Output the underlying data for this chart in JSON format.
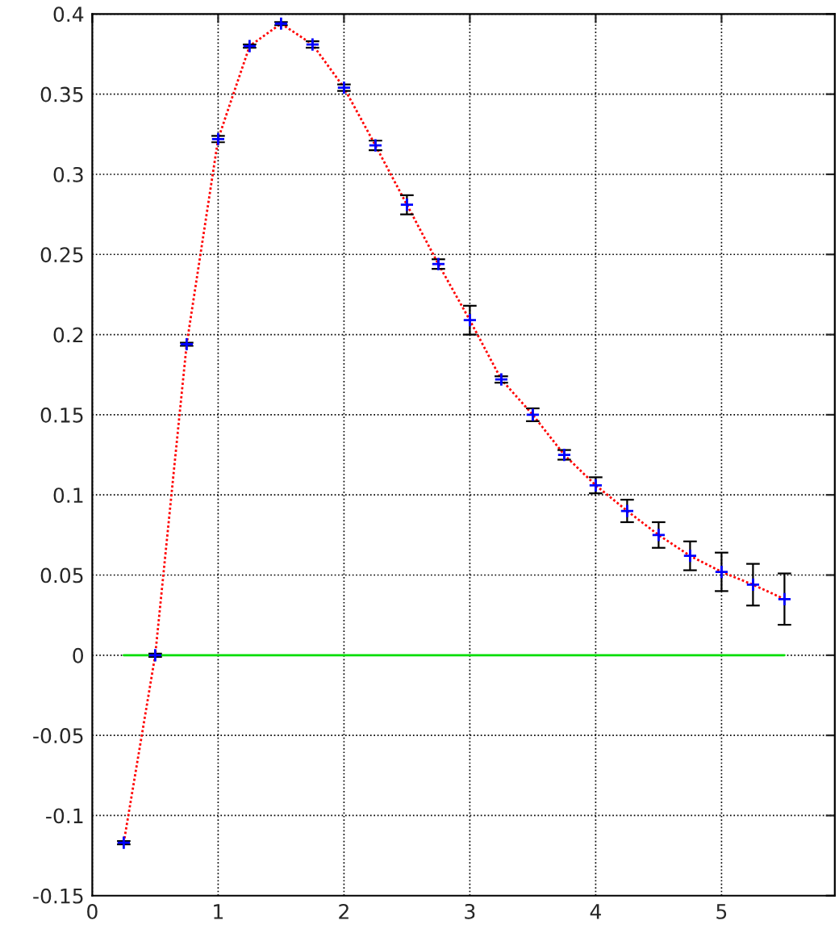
{
  "chart_data": {
    "type": "line",
    "xlim": [
      0,
      5.9
    ],
    "xticks": [
      0,
      1,
      2,
      3,
      4,
      5
    ],
    "ylim": [
      -0.15,
      0.4
    ],
    "yticks": [
      {
        "value": -0.15,
        "label": "-0.15"
      },
      {
        "value": -0.1,
        "label": "-0.1"
      },
      {
        "value": -0.05,
        "label": "-0.05"
      },
      0,
      0.05,
      0.1,
      0.15,
      0.2,
      0.25,
      0.3,
      0.35,
      0.4
    ],
    "grid": true,
    "legend": false,
    "series": [
      {
        "color": "#ff0000",
        "line_style": "dotted",
        "marker": "none",
        "x": [
          0.25,
          0.5,
          0.75,
          1.0,
          1.25,
          1.5,
          1.75,
          2.0,
          2.25,
          2.5,
          2.75,
          3.0,
          3.25,
          3.5,
          3.75,
          4.0,
          4.25,
          4.5,
          4.75,
          5.0,
          5.25,
          5.5
        ],
        "values": [
          -0.117,
          0.0,
          0.194,
          0.322,
          0.38,
          0.394,
          0.381,
          0.354,
          0.318,
          0.281,
          0.244,
          0.209,
          0.172,
          0.15,
          0.125,
          0.106,
          0.09,
          0.075,
          0.062,
          0.052,
          0.044,
          0.035
        ]
      },
      {
        "type": "scatter",
        "color": "#0000ff",
        "marker": "cross",
        "x": [
          0.25,
          0.5,
          0.75,
          1.0,
          1.25,
          1.5,
          1.75,
          2.0,
          2.25,
          2.5,
          2.75,
          3.0,
          3.25,
          3.5,
          3.75,
          4.0,
          4.25,
          4.5,
          4.75,
          5.0,
          5.25,
          5.5
        ],
        "values": [
          -0.117,
          0.0,
          0.194,
          0.322,
          0.38,
          0.394,
          0.381,
          0.354,
          0.318,
          0.281,
          0.244,
          0.209,
          0.172,
          0.15,
          0.125,
          0.106,
          0.09,
          0.075,
          0.062,
          0.052,
          0.044,
          0.035
        ],
        "errors": [
          0.001,
          0.001,
          0.001,
          0.002,
          0.001,
          0.001,
          0.002,
          0.002,
          0.003,
          0.006,
          0.003,
          0.009,
          0.002,
          0.004,
          0.003,
          0.005,
          0.007,
          0.008,
          0.009,
          0.012,
          0.013,
          0.016
        ]
      },
      {
        "type": "line",
        "color": "#00dd00",
        "line_style": "solid",
        "marker": "none",
        "x": [
          0.25,
          5.5
        ],
        "values": [
          0,
          0
        ]
      }
    ]
  }
}
